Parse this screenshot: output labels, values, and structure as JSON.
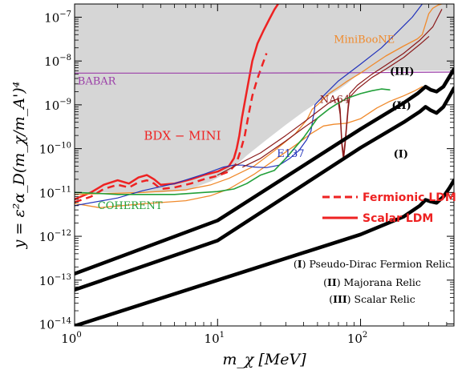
{
  "chart_data": {
    "type": "line",
    "xlabel": "m_χ [MeV]",
    "ylabel": "y = ε²α_D(m_χ/m_A')⁴",
    "xscale": "log",
    "yscale": "log",
    "xlim": [
      1,
      450
    ],
    "ylim": [
      9e-15,
      2e-07
    ],
    "x_ticks": [
      {
        "value": 1,
        "base": "10",
        "exp": "0"
      },
      {
        "value": 10,
        "base": "10",
        "exp": "1"
      },
      {
        "value": 100,
        "base": "10",
        "exp": "2"
      }
    ],
    "y_ticks": [
      {
        "value": 1e-14,
        "base": "10",
        "exp": "−14"
      },
      {
        "value": 1e-13,
        "base": "10",
        "exp": "−13"
      },
      {
        "value": 1e-12,
        "base": "10",
        "exp": "−12"
      },
      {
        "value": 1e-11,
        "base": "10",
        "exp": "−11"
      },
      {
        "value": 1e-10,
        "base": "10",
        "exp": "−10"
      },
      {
        "value": 1e-09,
        "base": "10",
        "exp": "−9"
      },
      {
        "value": 1e-08,
        "base": "10",
        "exp": "−8"
      },
      {
        "value": 1e-07,
        "base": "10",
        "exp": "−7"
      }
    ],
    "excluded_region": {
      "color": "#d6d6d6",
      "boundary": [
        [
          1,
          1e-11
        ],
        [
          2,
          1e-11
        ],
        [
          4,
          1e-11
        ],
        [
          6,
          1.1e-11
        ],
        [
          9,
          1.8e-11
        ],
        [
          12,
          3e-11
        ],
        [
          16,
          7e-11
        ],
        [
          22,
          1.6e-10
        ],
        [
          30,
          3.5e-10
        ],
        [
          40,
          7e-10
        ],
        [
          55,
          1.4e-09
        ],
        [
          70,
          2.2e-09
        ],
        [
          80,
          3e-09
        ],
        [
          100,
          5.5e-09
        ],
        [
          150,
          6e-09
        ],
        [
          200,
          6e-09
        ],
        [
          300,
          6e-09
        ],
        [
          450,
          6e-09
        ]
      ]
    },
    "series": [
      {
        "name": "BDX − MINI",
        "style": "solid",
        "color": "#ee2222",
        "width": 2.5,
        "points": [
          [
            1,
            7e-12
          ],
          [
            1.3,
            1e-11
          ],
          [
            1.6,
            1.5e-11
          ],
          [
            2,
            1.9e-11
          ],
          [
            2.4,
            1.6e-11
          ],
          [
            2.8,
            2.2e-11
          ],
          [
            3.2,
            2.5e-11
          ],
          [
            3.6,
            2e-11
          ],
          [
            4,
            1.5e-11
          ],
          [
            5,
            1.6e-11
          ],
          [
            6.5,
            2e-11
          ],
          [
            8,
            2.5e-11
          ],
          [
            10,
            3e-11
          ],
          [
            12,
            4e-11
          ],
          [
            13,
            6e-11
          ],
          [
            13.6,
            1e-10
          ],
          [
            14.2,
            2e-10
          ],
          [
            14.8,
            5e-10
          ],
          [
            15.6,
            1.3e-09
          ],
          [
            16.5,
            3.5e-09
          ],
          [
            17.5,
            1e-08
          ],
          [
            19,
            2.5e-08
          ],
          [
            21,
            5e-08
          ],
          [
            23,
            9e-08
          ],
          [
            25,
            1.5e-07
          ],
          [
            26.5,
            2e-07
          ]
        ]
      },
      {
        "name": "Fermionic LDM",
        "style": "dashed",
        "color": "#ee2222",
        "width": 2.5,
        "points": [
          [
            1,
            6e-12
          ],
          [
            1.3,
            8e-12
          ],
          [
            1.6,
            1.2e-11
          ],
          [
            2,
            1.5e-11
          ],
          [
            2.4,
            1.3e-11
          ],
          [
            2.8,
            1.7e-11
          ],
          [
            3.2,
            1.9e-11
          ],
          [
            3.6,
            1.6e-11
          ],
          [
            4,
            1.2e-11
          ],
          [
            5,
            1.3e-11
          ],
          [
            6.5,
            1.6e-11
          ],
          [
            8,
            2e-11
          ],
          [
            10,
            2.4e-11
          ],
          [
            12,
            3e-11
          ],
          [
            13.5,
            4.5e-11
          ],
          [
            14.5,
            9e-11
          ],
          [
            15.5,
            2e-10
          ],
          [
            16.5,
            6e-10
          ],
          [
            17.5,
            1.6e-09
          ],
          [
            19,
            4e-09
          ],
          [
            20.5,
            8e-09
          ],
          [
            22,
            1.5e-08
          ]
        ]
      },
      {
        "name": "Scalar LDM",
        "style": "legend-only",
        "color": "#ee2222"
      },
      {
        "name": "BABAR",
        "style": "solid",
        "color": "#9b3fa8",
        "width": 1.2,
        "points": [
          [
            1,
            5.3e-09
          ],
          [
            10,
            5.3e-09
          ],
          [
            100,
            5.4e-09
          ],
          [
            450,
            5.6e-09
          ]
        ]
      },
      {
        "name": "MiniBooNE",
        "style": "solid",
        "color": "#f08a2c",
        "width": 1.3,
        "points": [
          [
            1,
            9e-12
          ],
          [
            3,
            1e-11
          ],
          [
            6,
            1.15e-11
          ],
          [
            9,
            1.5e-11
          ],
          [
            12,
            2.1e-11
          ],
          [
            18,
            4e-11
          ],
          [
            25,
            9e-11
          ],
          [
            35,
            2.2e-10
          ],
          [
            42,
            4.5e-10
          ],
          [
            46,
            8e-10
          ],
          [
            50,
            1e-09
          ],
          [
            60,
            1.8e-09
          ],
          [
            70,
            2.5e-09
          ],
          [
            80,
            3.4e-09
          ],
          [
            90,
            4.3e-09
          ],
          [
            100,
            5.3e-09
          ],
          [
            120,
            8e-09
          ],
          [
            150,
            1.3e-08
          ],
          [
            200,
            2.2e-08
          ],
          [
            250,
            3.2e-08
          ],
          [
            270,
            4e-08
          ],
          [
            285,
            7e-08
          ],
          [
            300,
            1.2e-07
          ],
          [
            320,
            1.6e-07
          ],
          [
            350,
            1.9e-07
          ],
          [
            370,
            2e-07
          ]
        ]
      },
      {
        "name": "MiniBooNE",
        "style": "solid",
        "color": "#f08a2c",
        "width": 1.3,
        "points": [
          [
            1,
            5.6e-12
          ],
          [
            1.5,
            4.5e-12
          ],
          [
            3,
            5.5e-12
          ],
          [
            6,
            6.5e-12
          ],
          [
            9,
            8.5e-12
          ],
          [
            12,
            1.2e-11
          ],
          [
            18,
            2.6e-11
          ],
          [
            25,
            5.5e-11
          ],
          [
            35,
            1.2e-10
          ],
          [
            45,
            2.2e-10
          ],
          [
            55,
            3.3e-10
          ],
          [
            65,
            3.6e-10
          ],
          [
            80,
            3.8e-10
          ],
          [
            100,
            4.8e-10
          ],
          [
            130,
            8.5e-10
          ],
          [
            160,
            1.2e-09
          ],
          [
            200,
            1.6e-09
          ],
          [
            240,
            2.1e-09
          ],
          [
            270,
            2.6e-09
          ]
        ]
      },
      {
        "name": "E137",
        "style": "solid",
        "color": "#2233bb",
        "width": 1.2,
        "points": [
          [
            1,
            5e-12
          ],
          [
            2,
            7.5e-12
          ],
          [
            3,
            1.1e-11
          ],
          [
            5,
            1.6e-11
          ],
          [
            8,
            2.6e-11
          ],
          [
            11,
            3.8e-11
          ],
          [
            13,
            4.2e-11
          ],
          [
            15,
            4.2e-11
          ],
          [
            18,
            3.8e-11
          ],
          [
            22,
            3.7e-11
          ],
          [
            27,
            4.2e-11
          ],
          [
            32,
            6e-11
          ],
          [
            37,
            9e-11
          ],
          [
            42,
            1.6e-10
          ],
          [
            45,
            2.5e-10
          ],
          [
            46.5,
            5e-10
          ],
          [
            47.5,
            7e-10
          ],
          [
            48,
            1e-09
          ],
          [
            55,
            1.6e-09
          ],
          [
            70,
            3.5e-09
          ],
          [
            100,
            8.5e-09
          ],
          [
            140,
            2e-08
          ],
          [
            180,
            4.5e-08
          ],
          [
            230,
            1e-07
          ],
          [
            270,
            2e-07
          ]
        ]
      },
      {
        "name": "NA64",
        "style": "solid",
        "color": "#8b1a1a",
        "width": 1.2,
        "points": [
          [
            10,
            2.5e-11
          ],
          [
            15,
            5e-11
          ],
          [
            20,
            8e-11
          ],
          [
            30,
            2e-10
          ],
          [
            40,
            4e-10
          ],
          [
            50,
            7e-10
          ],
          [
            60,
            1.1e-09
          ],
          [
            70,
            1.4e-09
          ],
          [
            72,
            8e-10
          ],
          [
            74,
            1.5e-10
          ],
          [
            76,
            7e-11
          ],
          [
            78,
            1.5e-10
          ],
          [
            80,
            4e-10
          ],
          [
            82,
            1e-09
          ],
          [
            84,
            1.8e-09
          ],
          [
            95,
            2.8e-09
          ],
          [
            120,
            5e-09
          ],
          [
            150,
            8e-09
          ],
          [
            200,
            1.5e-08
          ],
          [
            260,
            3e-08
          ],
          [
            320,
            6e-08
          ],
          [
            370,
            1.5e-07
          ]
        ]
      },
      {
        "name": "NA64",
        "style": "solid",
        "color": "#8b1a1a",
        "width": 1.2,
        "points": [
          [
            15,
            3.8e-11
          ],
          [
            20,
            6e-11
          ],
          [
            30,
            1.5e-10
          ],
          [
            40,
            3e-10
          ],
          [
            50,
            5e-10
          ],
          [
            60,
            8e-10
          ],
          [
            70,
            1.1e-09
          ],
          [
            72,
            6e-10
          ],
          [
            74,
            1.2e-10
          ],
          [
            76,
            5.5e-11
          ],
          [
            78,
            1.2e-10
          ],
          [
            80,
            3.2e-10
          ],
          [
            82,
            8e-10
          ],
          [
            84,
            1.5e-09
          ],
          [
            95,
            2.3e-09
          ],
          [
            120,
            4.2e-09
          ],
          [
            150,
            6.5e-09
          ],
          [
            200,
            1.2e-08
          ],
          [
            260,
            2.4e-08
          ],
          [
            300,
            3.6e-08
          ]
        ]
      },
      {
        "name": "COHERENT",
        "style": "solid",
        "color": "#22a03a",
        "width": 1.6,
        "points": [
          [
            1,
            1e-11
          ],
          [
            1.5,
            9.5e-12
          ],
          [
            2,
            9e-12
          ],
          [
            3,
            9e-12
          ],
          [
            5,
            9e-12
          ],
          [
            8,
            1e-11
          ],
          [
            10,
            1.05e-11
          ],
          [
            13,
            1.2e-11
          ],
          [
            16,
            1.6e-11
          ],
          [
            20,
            2.5e-11
          ],
          [
            25,
            3.2e-11
          ],
          [
            30,
            6e-11
          ],
          [
            40,
            1.8e-10
          ],
          [
            50,
            5e-10
          ],
          [
            60,
            8e-10
          ],
          [
            70,
            1.1e-09
          ],
          [
            80,
            1.4e-09
          ],
          [
            100,
            1.8e-09
          ],
          [
            120,
            2.1e-09
          ],
          [
            140,
            2.3e-09
          ],
          [
            160,
            2.2e-09
          ]
        ]
      },
      {
        "name": "(I)",
        "style": "solid",
        "color": "#000000",
        "width": 4.5,
        "points": [
          [
            1,
            9e-15
          ],
          [
            10,
            1e-13
          ],
          [
            100,
            1.1e-12
          ],
          [
            200,
            2.8e-12
          ],
          [
            260,
            5e-12
          ],
          [
            285,
            6.8e-12
          ],
          [
            310,
            6.2e-12
          ],
          [
            340,
            5.8e-12
          ],
          [
            380,
            8e-12
          ],
          [
            420,
            1.3e-11
          ],
          [
            450,
            1.9e-11
          ]
        ]
      },
      {
        "name": "(II)",
        "style": "solid",
        "color": "#000000",
        "width": 4.5,
        "points": [
          [
            1,
            6e-14
          ],
          [
            10,
            8e-13
          ],
          [
            100,
            1.05e-10
          ],
          [
            200,
            4e-10
          ],
          [
            260,
            7e-10
          ],
          [
            285,
            9e-10
          ],
          [
            310,
            7.5e-10
          ],
          [
            340,
            6.5e-10
          ],
          [
            380,
            9e-10
          ],
          [
            420,
            1.6e-09
          ],
          [
            450,
            2.4e-09
          ]
        ]
      },
      {
        "name": "(III)",
        "style": "solid",
        "color": "#000000",
        "width": 4.5,
        "points": [
          [
            1,
            1.4e-13
          ],
          [
            10,
            2.3e-12
          ],
          [
            100,
            2.8e-10
          ],
          [
            200,
            1.1e-09
          ],
          [
            250,
            1.8e-09
          ],
          [
            285,
            2.6e-09
          ],
          [
            310,
            2.2e-09
          ],
          [
            340,
            2e-09
          ],
          [
            380,
            2.6e-09
          ],
          [
            420,
            4.5e-09
          ],
          [
            450,
            6.5e-09
          ]
        ]
      }
    ],
    "annotations": [
      {
        "text": "MiniBooNE",
        "color": "#f08a2c",
        "x": 65,
        "y": 2.6e-08
      },
      {
        "text": "BABAR",
        "color": "#9b3fa8",
        "x": 1.05,
        "y": 2.9e-09
      },
      {
        "text": "NA64",
        "color": "#8b1a1a",
        "x": 52,
        "y": 1.1e-09
      },
      {
        "text": "BDX − MINI",
        "color": "#ee2222",
        "x": 3.05,
        "y": 1.6e-10
      },
      {
        "text": "E137",
        "color": "#2233bb",
        "x": 26,
        "y": 6.4e-11
      },
      {
        "text": "COHERENT",
        "color": "#22a03a",
        "x": 1.45,
        "y": 4.2e-12
      },
      {
        "text": "(III)",
        "color": "#000000",
        "x": 160,
        "y": 4.8e-09
      },
      {
        "text": "(II)",
        "color": "#000000",
        "x": 165,
        "y": 8e-10
      },
      {
        "text": "(I)",
        "color": "#000000",
        "x": 170,
        "y": 6.3e-11
      }
    ],
    "legend": {
      "placement": "center-right",
      "entries": [
        {
          "label": "Fermionic LDM",
          "style": "dashed",
          "color": "#ee2222"
        },
        {
          "label": "Scalar LDM",
          "style": "solid",
          "color": "#ee2222"
        }
      ]
    },
    "relic_legend": {
      "placement": "bottom-right",
      "entries": [
        {
          "mark": "I",
          "label": "Pseudo-Dirac Fermion Relic"
        },
        {
          "mark": "II",
          "label": "Majorana Relic"
        },
        {
          "mark": "III",
          "label": "Scalar Relic"
        }
      ]
    }
  }
}
